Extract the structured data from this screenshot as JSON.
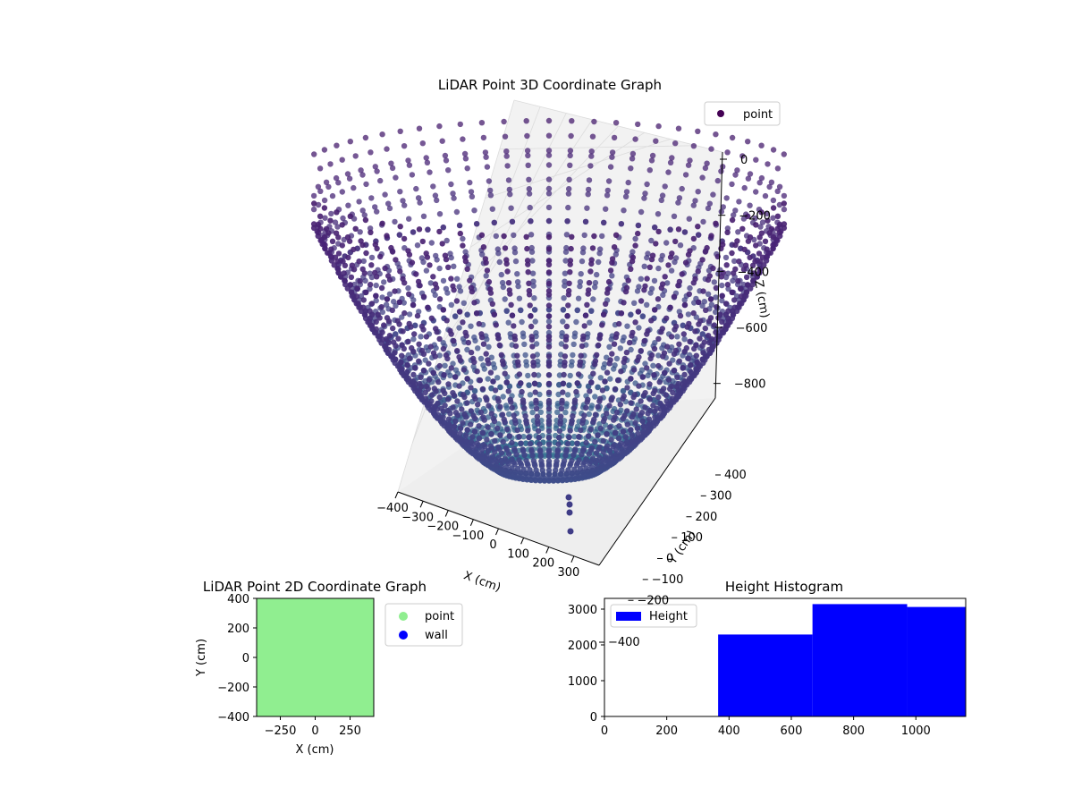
{
  "chart_data": [
    {
      "type": "scatter3d",
      "title": "LiDAR Point 3D Coordinate Graph",
      "xlabel": "X (cm)",
      "ylabel": "Y (cm)",
      "zlabel": "Z (cm)",
      "xticks": [
        -400,
        -300,
        -200,
        -100,
        0,
        100,
        200,
        300
      ],
      "yticks": [
        -400,
        -300,
        -200,
        -100,
        0,
        100,
        200,
        300,
        400
      ],
      "zticks": [
        0,
        -200,
        -400,
        -600,
        -800
      ],
      "xlim": [
        -400,
        400
      ],
      "ylim": [
        -400,
        400
      ],
      "zlim": [
        -900,
        0
      ],
      "legend": [
        {
          "label": "point",
          "color": "#440154"
        }
      ],
      "legend_position": "top-right",
      "colormap": "viridis",
      "series": [
        {
          "name": "point",
          "shape": "bowl",
          "rings": 14,
          "points_per_ring": 72
        }
      ]
    },
    {
      "type": "scatter",
      "title": "LiDAR Point 2D Coordinate Graph",
      "xlabel": "X (cm)",
      "ylabel": "Y (cm)",
      "xticks": [
        -250,
        0,
        250
      ],
      "yticks": [
        400,
        200,
        0,
        -200,
        -400
      ],
      "xlim": [
        -420,
        420
      ],
      "ylim": [
        -400,
        400
      ],
      "legend": [
        {
          "label": "point",
          "color": "#90ee90"
        },
        {
          "label": "wall",
          "color": "#0000ff"
        }
      ],
      "legend_position": "outside-right",
      "series": [
        {
          "name": "point",
          "color": "#90ee90",
          "fill_region": {
            "x": [
              -420,
              420
            ],
            "y": [
              -400,
              400
            ]
          }
        }
      ]
    },
    {
      "type": "bar",
      "title": "Height Histogram",
      "xlabel": "",
      "ylabel": "",
      "xticks": [
        0,
        200,
        400,
        600,
        800,
        1000
      ],
      "yticks": [
        0,
        1000,
        2000,
        3000
      ],
      "xlim": [
        0,
        1160
      ],
      "ylim": [
        0,
        3300
      ],
      "legend": [
        {
          "label": "Height",
          "color": "#0000ff"
        }
      ],
      "legend_position": "top-left",
      "bins": [
        {
          "x0": 365,
          "x1": 668,
          "value": 2290
        },
        {
          "x0": 668,
          "x1": 972,
          "value": 3140
        },
        {
          "x0": 972,
          "x1": 1160,
          "value": 3060
        }
      ],
      "bar_color": "#0000ff"
    }
  ]
}
